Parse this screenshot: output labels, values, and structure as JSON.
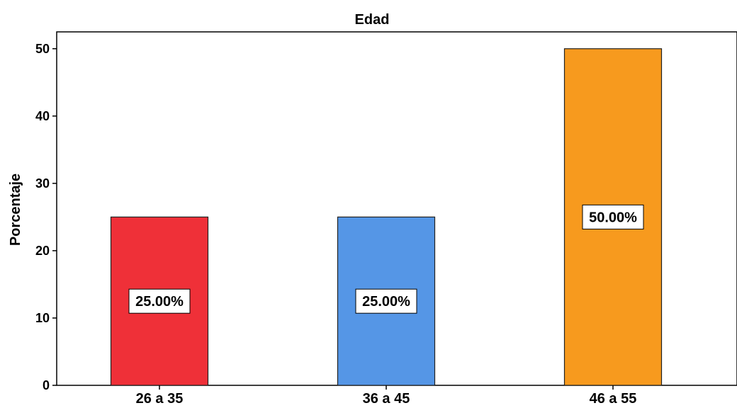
{
  "chart_data": {
    "type": "bar",
    "title": "Edad",
    "xlabel": "",
    "ylabel": "Porcentaje",
    "categories": [
      "26 a 35",
      "36 a 45",
      "46 a 55"
    ],
    "values": [
      25,
      25,
      50
    ],
    "data_labels": [
      "25.00%",
      "25.00%",
      "50.00%"
    ],
    "colors": [
      "#ef3038",
      "#5596e6",
      "#f79a1e"
    ],
    "ylim": [
      0,
      52.5
    ],
    "yticks": [
      0,
      10,
      20,
      30,
      40,
      50
    ],
    "grid": false,
    "legend": "none"
  }
}
